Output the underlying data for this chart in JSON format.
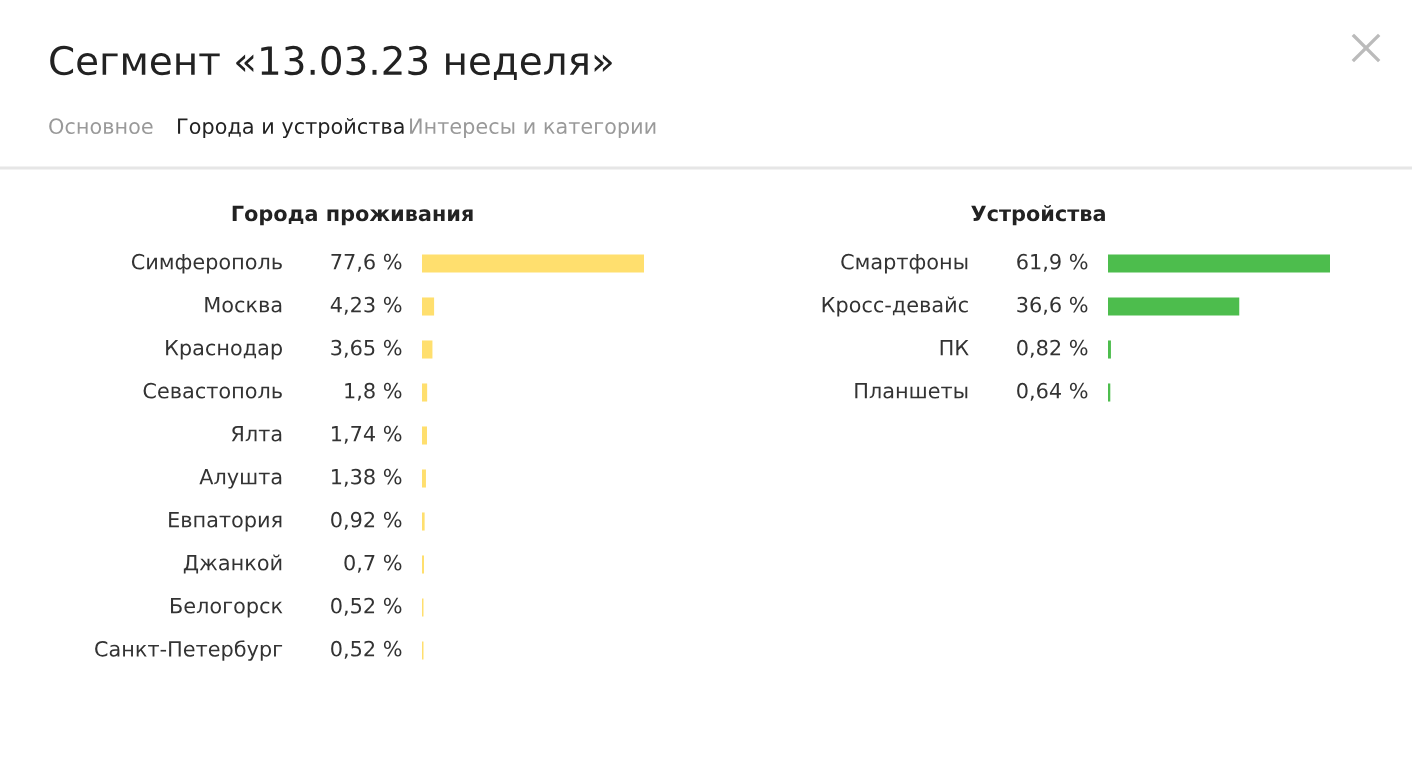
{
  "chart_data": [
    {
      "type": "other",
      "title": "Сегмент «13.03.23 неделя»",
      "annotations": [
        "Основное",
        "Города и устройства",
        "Интересы и категории"
      ]
    },
    {
      "type": "bar",
      "orientation": "horizontal",
      "title": "Города проживания",
      "categories": [
        "Симферополь",
        "Москва",
        "Краснодар",
        "Севастополь",
        "Ялта",
        "Алушта",
        "Евпатория",
        "Джанкой",
        "Белогорск",
        "Санкт-Петербург"
      ],
      "values": [
        77.6,
        4.23,
        3.65,
        1.8,
        1.74,
        1.38,
        0.92,
        0.7,
        0.52,
        0.52
      ],
      "value_labels": [
        "77,6 %",
        "4,23 %",
        "3,65 %",
        "1,8 %",
        "1,74 %",
        "1,38 %",
        "0,92 %",
        "0,7 %",
        "0,52 %",
        "0,52 %"
      ],
      "color": "#ffdf6e"
    },
    {
      "type": "bar",
      "orientation": "horizontal",
      "title": "Устройства",
      "categories": [
        "Смартфоны",
        "Кросс-девайс",
        "ПК",
        "Планшеты"
      ],
      "values": [
        61.9,
        36.6,
        0.82,
        0.64
      ],
      "value_labels": [
        "61,9 %",
        "36,6 %",
        "0,82 %",
        "0,64 %"
      ],
      "color": "#4dbd4d"
    }
  ]
}
